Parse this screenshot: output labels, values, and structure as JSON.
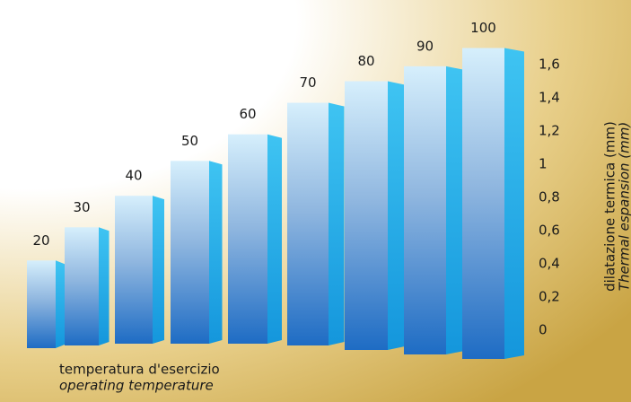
{
  "chart_data": {
    "type": "bar3d",
    "categories": [
      "20",
      "30",
      "40",
      "50",
      "60",
      "70",
      "80",
      "90",
      "100"
    ],
    "values": [
      0.42,
      0.62,
      0.81,
      1.02,
      1.18,
      1.37,
      1.5,
      1.59,
      1.7
    ],
    "ylim": [
      0,
      1.7
    ],
    "yticks": [
      0,
      {
        "value": 0.2,
        "label": "0,2"
      },
      {
        "value": 0.4,
        "label": "0,4"
      },
      {
        "value": 0.6,
        "label": "0,6"
      },
      {
        "value": 0.8,
        "label": "0,8"
      },
      1,
      {
        "value": 1.2,
        "label": "1,2"
      },
      {
        "value": 1.4,
        "label": "1,4"
      },
      {
        "value": 1.6,
        "label": "1,6"
      }
    ],
    "y_label": "dilatazione termica (mm)",
    "y_label_2": "Thermal espansion (mm)",
    "x_label": "temperatura d'esercizio",
    "x_label_2": "operating temperature",
    "color": "#2f7fd0"
  }
}
